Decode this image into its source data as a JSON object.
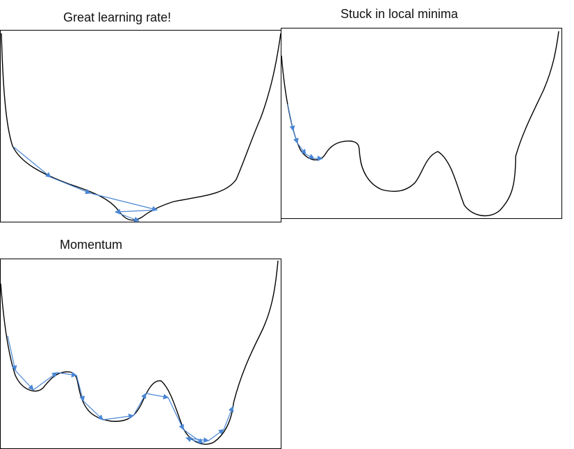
{
  "panels": [
    {
      "title": "Great learning rate!"
    },
    {
      "title": "Stuck in local minima"
    },
    {
      "title": "Momentum"
    }
  ],
  "colors": {
    "curve": "#000000",
    "arrow": "#4a86d4",
    "border": "#000000"
  }
}
